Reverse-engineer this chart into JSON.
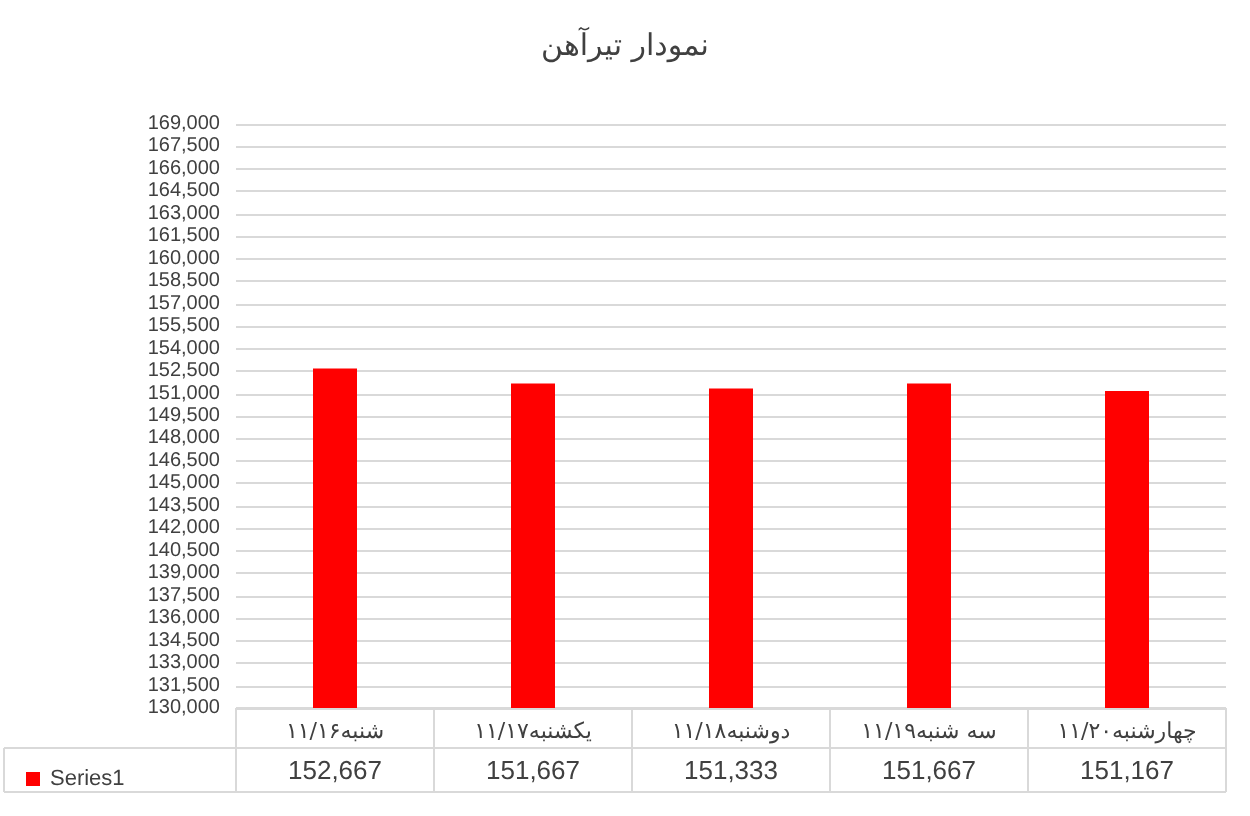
{
  "chart_data": {
    "type": "bar",
    "title": "نمودار تیرآهن",
    "categories": [
      "شنبه۱۱/۱۶",
      "یکشنبه۱۱/۱۷",
      "دوشنبه۱۱/۱۸",
      "سه شنبه۱۱/۱۹",
      "چهارشنبه۱۱/۲۰"
    ],
    "series": [
      {
        "name": "Series1",
        "color": "#ff0000",
        "values": [
          152667,
          151667,
          151333,
          151667,
          151167
        ],
        "value_labels": [
          "152,667",
          "151,667",
          "151,333",
          "151,667",
          "151,167"
        ]
      }
    ],
    "ylim": [
      130000,
      169000
    ],
    "yticks": [
      {
        "value": 130000,
        "label": "130,000"
      },
      {
        "value": 131500,
        "label": "131,500"
      },
      {
        "value": 133000,
        "label": "133,000"
      },
      {
        "value": 134500,
        "label": "134,500"
      },
      {
        "value": 136000,
        "label": "136,000"
      },
      {
        "value": 137500,
        "label": "137,500"
      },
      {
        "value": 139000,
        "label": "139,000"
      },
      {
        "value": 140500,
        "label": "140,500"
      },
      {
        "value": 142000,
        "label": "142,000"
      },
      {
        "value": 143500,
        "label": "143,500"
      },
      {
        "value": 145000,
        "label": "145,000"
      },
      {
        "value": 146500,
        "label": "146,500"
      },
      {
        "value": 148000,
        "label": "148,000"
      },
      {
        "value": 149500,
        "label": "149,500"
      },
      {
        "value": 151000,
        "label": "151,000"
      },
      {
        "value": 152500,
        "label": "152,500"
      },
      {
        "value": 154000,
        "label": "154,000"
      },
      {
        "value": 155500,
        "label": "155,500"
      },
      {
        "value": 157000,
        "label": "157,000"
      },
      {
        "value": 158500,
        "label": "158,500"
      },
      {
        "value": 160000,
        "label": "160,000"
      },
      {
        "value": 161500,
        "label": "161,500"
      },
      {
        "value": 163000,
        "label": "163,000"
      },
      {
        "value": 164500,
        "label": "164,500"
      },
      {
        "value": 166000,
        "label": "166,000"
      },
      {
        "value": 167500,
        "label": "167,500"
      },
      {
        "value": 169000,
        "label": "169,000"
      }
    ],
    "grid": "y",
    "legend": "bottom"
  }
}
